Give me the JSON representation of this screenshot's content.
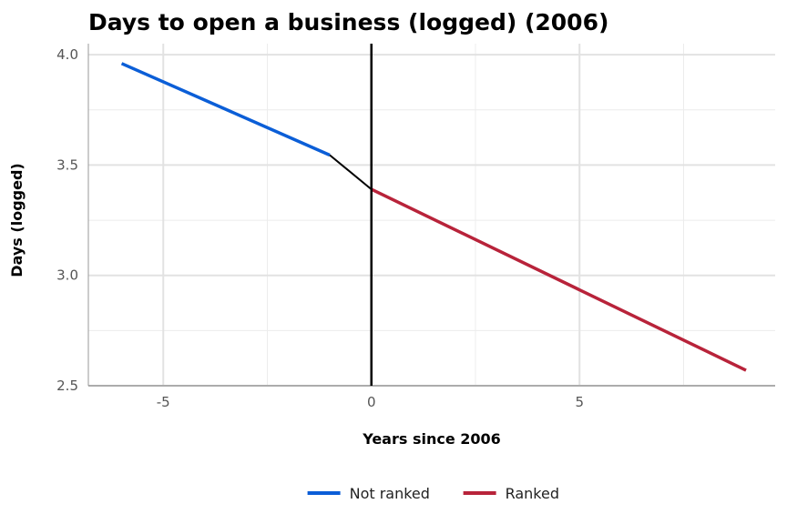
{
  "chart_data": {
    "type": "line",
    "title": "Days to open a business (logged) (2006)",
    "xlabel": "Years since 2006",
    "ylabel": "Days (logged)",
    "xlim": [
      -6.8,
      9.7
    ],
    "ylim": [
      2.5,
      4.05
    ],
    "x_ticks": [
      -5,
      0,
      5
    ],
    "x_tick_labels": [
      "-5",
      "0",
      "5"
    ],
    "y_ticks": [
      2.5,
      3.0,
      3.5,
      4.0
    ],
    "y_tick_labels": [
      "2.5",
      "3.0",
      "3.5",
      "4.0"
    ],
    "grid": true,
    "legend_position": "bottom",
    "cutoff_x": 0,
    "series": [
      {
        "name": "Not ranked",
        "color": "#0b5ed7",
        "x": [
          -6,
          -1
        ],
        "y": [
          3.96,
          3.545
        ]
      },
      {
        "name": "Ranked",
        "color": "#b8233a",
        "x": [
          0,
          9
        ],
        "y": [
          3.39,
          2.57
        ]
      }
    ],
    "connector": {
      "color": "#000000",
      "x": [
        -1,
        0
      ],
      "y": [
        3.545,
        3.39
      ]
    }
  }
}
